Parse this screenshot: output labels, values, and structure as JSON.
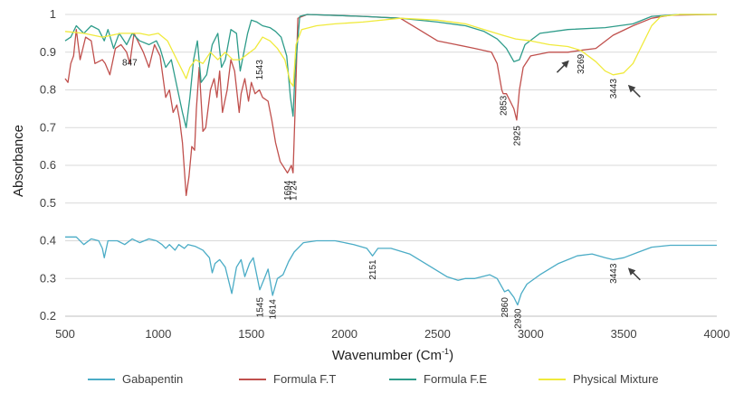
{
  "chart_data": {
    "type": "line",
    "title": "",
    "xlabel_main": "Wavenumber (Cm",
    "xlabel_sup": "-1",
    "xlabel_end": ")",
    "ylabel": "Absorbance",
    "xlim": [
      500,
      4000
    ],
    "ylim": [
      0.2,
      1.0
    ],
    "xticks": [
      "500",
      "1000",
      "1500",
      "2000",
      "2500",
      "3000",
      "3500",
      "4000"
    ],
    "yticks": [
      "0.2",
      "0.3",
      "0.4",
      "0.5",
      "0.6",
      "0.7",
      "0.8",
      "0.9",
      "1"
    ],
    "grid": "horizontal",
    "legend_position": "bottom",
    "series": [
      {
        "name": "Gabapentin",
        "color": "#4bacc6",
        "points": [
          [
            500,
            0.41
          ],
          [
            560,
            0.41
          ],
          [
            600,
            0.39
          ],
          [
            640,
            0.405
          ],
          [
            680,
            0.4
          ],
          [
            700,
            0.38
          ],
          [
            710,
            0.355
          ],
          [
            730,
            0.4
          ],
          [
            780,
            0.4
          ],
          [
            820,
            0.39
          ],
          [
            860,
            0.405
          ],
          [
            900,
            0.395
          ],
          [
            950,
            0.405
          ],
          [
            990,
            0.4
          ],
          [
            1020,
            0.39
          ],
          [
            1040,
            0.38
          ],
          [
            1060,
            0.39
          ],
          [
            1090,
            0.375
          ],
          [
            1110,
            0.39
          ],
          [
            1140,
            0.38
          ],
          [
            1160,
            0.39
          ],
          [
            1200,
            0.385
          ],
          [
            1240,
            0.375
          ],
          [
            1275,
            0.355
          ],
          [
            1290,
            0.315
          ],
          [
            1305,
            0.34
          ],
          [
            1330,
            0.35
          ],
          [
            1360,
            0.33
          ],
          [
            1395,
            0.26
          ],
          [
            1420,
            0.33
          ],
          [
            1445,
            0.35
          ],
          [
            1465,
            0.305
          ],
          [
            1490,
            0.34
          ],
          [
            1510,
            0.355
          ],
          [
            1545,
            0.27
          ],
          [
            1570,
            0.3
          ],
          [
            1590,
            0.325
          ],
          [
            1614,
            0.255
          ],
          [
            1640,
            0.3
          ],
          [
            1670,
            0.31
          ],
          [
            1700,
            0.345
          ],
          [
            1730,
            0.37
          ],
          [
            1780,
            0.395
          ],
          [
            1850,
            0.4
          ],
          [
            1950,
            0.4
          ],
          [
            2050,
            0.39
          ],
          [
            2120,
            0.38
          ],
          [
            2151,
            0.36
          ],
          [
            2180,
            0.38
          ],
          [
            2250,
            0.38
          ],
          [
            2350,
            0.365
          ],
          [
            2450,
            0.335
          ],
          [
            2550,
            0.305
          ],
          [
            2610,
            0.295
          ],
          [
            2650,
            0.3
          ],
          [
            2700,
            0.3
          ],
          [
            2780,
            0.31
          ],
          [
            2820,
            0.3
          ],
          [
            2860,
            0.265
          ],
          [
            2880,
            0.27
          ],
          [
            2910,
            0.25
          ],
          [
            2930,
            0.23
          ],
          [
            2950,
            0.26
          ],
          [
            2980,
            0.285
          ],
          [
            3050,
            0.31
          ],
          [
            3150,
            0.34
          ],
          [
            3250,
            0.36
          ],
          [
            3330,
            0.365
          ],
          [
            3400,
            0.355
          ],
          [
            3443,
            0.35
          ],
          [
            3500,
            0.355
          ],
          [
            3580,
            0.37
          ],
          [
            3650,
            0.383
          ],
          [
            3750,
            0.388
          ],
          [
            4000,
            0.388
          ]
        ]
      },
      {
        "name": "Formula F.T",
        "color": "#c0504d",
        "points": [
          [
            500,
            0.83
          ],
          [
            515,
            0.82
          ],
          [
            530,
            0.87
          ],
          [
            545,
            0.89
          ],
          [
            560,
            0.96
          ],
          [
            580,
            0.88
          ],
          [
            610,
            0.94
          ],
          [
            640,
            0.93
          ],
          [
            660,
            0.87
          ],
          [
            700,
            0.88
          ],
          [
            715,
            0.87
          ],
          [
            740,
            0.84
          ],
          [
            770,
            0.91
          ],
          [
            800,
            0.92
          ],
          [
            830,
            0.9
          ],
          [
            847,
            0.87
          ],
          [
            870,
            0.95
          ],
          [
            890,
            0.93
          ],
          [
            920,
            0.9
          ],
          [
            950,
            0.86
          ],
          [
            980,
            0.92
          ],
          [
            1010,
            0.89
          ],
          [
            1040,
            0.78
          ],
          [
            1060,
            0.8
          ],
          [
            1080,
            0.74
          ],
          [
            1100,
            0.76
          ],
          [
            1115,
            0.72
          ],
          [
            1130,
            0.66
          ],
          [
            1150,
            0.52
          ],
          [
            1165,
            0.57
          ],
          [
            1180,
            0.65
          ],
          [
            1195,
            0.64
          ],
          [
            1205,
            0.75
          ],
          [
            1220,
            0.86
          ],
          [
            1240,
            0.69
          ],
          [
            1255,
            0.7
          ],
          [
            1280,
            0.8
          ],
          [
            1300,
            0.83
          ],
          [
            1315,
            0.78
          ],
          [
            1330,
            0.85
          ],
          [
            1345,
            0.74
          ],
          [
            1370,
            0.8
          ],
          [
            1390,
            0.88
          ],
          [
            1410,
            0.85
          ],
          [
            1435,
            0.74
          ],
          [
            1445,
            0.79
          ],
          [
            1465,
            0.83
          ],
          [
            1485,
            0.77
          ],
          [
            1500,
            0.82
          ],
          [
            1520,
            0.79
          ],
          [
            1543,
            0.8
          ],
          [
            1560,
            0.78
          ],
          [
            1590,
            0.77
          ],
          [
            1610,
            0.72
          ],
          [
            1630,
            0.66
          ],
          [
            1655,
            0.61
          ],
          [
            1694,
            0.58
          ],
          [
            1705,
            0.59
          ],
          [
            1715,
            0.6
          ],
          [
            1724,
            0.58
          ],
          [
            1735,
            0.75
          ],
          [
            1750,
            0.99
          ],
          [
            1800,
            1.0
          ],
          [
            2100,
            0.995
          ],
          [
            2300,
            0.99
          ],
          [
            2400,
            0.96
          ],
          [
            2500,
            0.93
          ],
          [
            2600,
            0.92
          ],
          [
            2700,
            0.91
          ],
          [
            2790,
            0.9
          ],
          [
            2820,
            0.87
          ],
          [
            2845,
            0.8
          ],
          [
            2853,
            0.79
          ],
          [
            2870,
            0.79
          ],
          [
            2890,
            0.77
          ],
          [
            2910,
            0.75
          ],
          [
            2925,
            0.72
          ],
          [
            2940,
            0.8
          ],
          [
            2960,
            0.86
          ],
          [
            3000,
            0.89
          ],
          [
            3100,
            0.9
          ],
          [
            3200,
            0.9
          ],
          [
            3269,
            0.905
          ],
          [
            3350,
            0.91
          ],
          [
            3443,
            0.945
          ],
          [
            3550,
            0.97
          ],
          [
            3650,
            0.99
          ],
          [
            3750,
            0.998
          ],
          [
            4000,
            1.0
          ]
        ]
      },
      {
        "name": "Formula F.E",
        "color": "#2e9c8a",
        "points": [
          [
            500,
            0.93
          ],
          [
            530,
            0.94
          ],
          [
            560,
            0.97
          ],
          [
            600,
            0.95
          ],
          [
            640,
            0.97
          ],
          [
            680,
            0.96
          ],
          [
            710,
            0.93
          ],
          [
            730,
            0.96
          ],
          [
            760,
            0.91
          ],
          [
            790,
            0.95
          ],
          [
            830,
            0.92
          ],
          [
            860,
            0.95
          ],
          [
            900,
            0.93
          ],
          [
            950,
            0.92
          ],
          [
            990,
            0.93
          ],
          [
            1010,
            0.91
          ],
          [
            1040,
            0.86
          ],
          [
            1070,
            0.88
          ],
          [
            1100,
            0.81
          ],
          [
            1130,
            0.74
          ],
          [
            1150,
            0.7
          ],
          [
            1170,
            0.78
          ],
          [
            1190,
            0.88
          ],
          [
            1210,
            0.93
          ],
          [
            1230,
            0.82
          ],
          [
            1260,
            0.84
          ],
          [
            1290,
            0.92
          ],
          [
            1320,
            0.95
          ],
          [
            1340,
            0.86
          ],
          [
            1360,
            0.88
          ],
          [
            1390,
            0.96
          ],
          [
            1420,
            0.95
          ],
          [
            1440,
            0.85
          ],
          [
            1460,
            0.9
          ],
          [
            1480,
            0.95
          ],
          [
            1500,
            0.985
          ],
          [
            1530,
            0.98
          ],
          [
            1560,
            0.97
          ],
          [
            1600,
            0.965
          ],
          [
            1630,
            0.955
          ],
          [
            1660,
            0.94
          ],
          [
            1690,
            0.89
          ],
          [
            1710,
            0.78
          ],
          [
            1724,
            0.73
          ],
          [
            1735,
            0.85
          ],
          [
            1760,
            0.995
          ],
          [
            1800,
            1.0
          ],
          [
            2100,
            0.995
          ],
          [
            2300,
            0.99
          ],
          [
            2500,
            0.98
          ],
          [
            2650,
            0.97
          ],
          [
            2750,
            0.955
          ],
          [
            2820,
            0.935
          ],
          [
            2870,
            0.91
          ],
          [
            2910,
            0.875
          ],
          [
            2940,
            0.88
          ],
          [
            2970,
            0.92
          ],
          [
            3050,
            0.95
          ],
          [
            3200,
            0.96
          ],
          [
            3400,
            0.965
          ],
          [
            3550,
            0.975
          ],
          [
            3650,
            0.995
          ],
          [
            3800,
            1.0
          ],
          [
            4000,
            1.0
          ]
        ]
      },
      {
        "name": "Physical Mixture",
        "color": "#f0ea3c",
        "points": [
          [
            500,
            0.955
          ],
          [
            600,
            0.95
          ],
          [
            700,
            0.94
          ],
          [
            800,
            0.95
          ],
          [
            900,
            0.95
          ],
          [
            950,
            0.945
          ],
          [
            1000,
            0.95
          ],
          [
            1050,
            0.93
          ],
          [
            1100,
            0.88
          ],
          [
            1130,
            0.85
          ],
          [
            1150,
            0.83
          ],
          [
            1170,
            0.86
          ],
          [
            1200,
            0.88
          ],
          [
            1240,
            0.87
          ],
          [
            1280,
            0.9
          ],
          [
            1320,
            0.88
          ],
          [
            1360,
            0.9
          ],
          [
            1400,
            0.88
          ],
          [
            1440,
            0.88
          ],
          [
            1480,
            0.895
          ],
          [
            1520,
            0.91
          ],
          [
            1560,
            0.94
          ],
          [
            1600,
            0.93
          ],
          [
            1640,
            0.91
          ],
          [
            1680,
            0.88
          ],
          [
            1710,
            0.82
          ],
          [
            1725,
            0.81
          ],
          [
            1740,
            0.92
          ],
          [
            1770,
            0.96
          ],
          [
            1850,
            0.97
          ],
          [
            1950,
            0.975
          ],
          [
            2100,
            0.98
          ],
          [
            2300,
            0.99
          ],
          [
            2500,
            0.985
          ],
          [
            2650,
            0.975
          ],
          [
            2750,
            0.96
          ],
          [
            2850,
            0.945
          ],
          [
            2920,
            0.935
          ],
          [
            3000,
            0.93
          ],
          [
            3100,
            0.92
          ],
          [
            3200,
            0.915
          ],
          [
            3269,
            0.905
          ],
          [
            3350,
            0.875
          ],
          [
            3400,
            0.85
          ],
          [
            3443,
            0.84
          ],
          [
            3500,
            0.845
          ],
          [
            3550,
            0.87
          ],
          [
            3600,
            0.92
          ],
          [
            3650,
            0.97
          ],
          [
            3700,
            0.995
          ],
          [
            3800,
            1.0
          ],
          [
            4000,
            1.0
          ]
        ]
      }
    ],
    "annotations": [
      {
        "text": "847",
        "x": 847,
        "y": 0.865,
        "vertical": false
      },
      {
        "text": "1543",
        "x": 1543,
        "y": 0.88,
        "vertical": true
      },
      {
        "text": "1694",
        "x": 1694,
        "y": 0.56,
        "vertical": true
      },
      {
        "text": "1724",
        "x": 1724,
        "y": 0.56,
        "vertical": true
      },
      {
        "text": "2853",
        "x": 2853,
        "y": 0.785,
        "vertical": true
      },
      {
        "text": "2925",
        "x": 2925,
        "y": 0.705,
        "vertical": true
      },
      {
        "text": "3269",
        "x": 3269,
        "y": 0.895,
        "vertical": true
      },
      {
        "text": "3443",
        "x": 3443,
        "y": 0.83,
        "vertical": true
      },
      {
        "text": "2151",
        "x": 2151,
        "y": 0.35,
        "vertical": true
      },
      {
        "text": "1545",
        "x": 1545,
        "y": 0.25,
        "vertical": true
      },
      {
        "text": "1614",
        "x": 1614,
        "y": 0.245,
        "vertical": true
      },
      {
        "text": "2860",
        "x": 2860,
        "y": 0.25,
        "vertical": true
      },
      {
        "text": "2930",
        "x": 2930,
        "y": 0.22,
        "vertical": true
      },
      {
        "text": "3443",
        "x": 3443,
        "y": 0.34,
        "vertical": true
      }
    ],
    "arrows": [
      {
        "x": 3200,
        "y": 0.875,
        "direction": "up-right"
      },
      {
        "x": 3530,
        "y": 0.81,
        "direction": "up-left"
      },
      {
        "x": 3530,
        "y": 0.325,
        "direction": "up-left"
      }
    ]
  }
}
